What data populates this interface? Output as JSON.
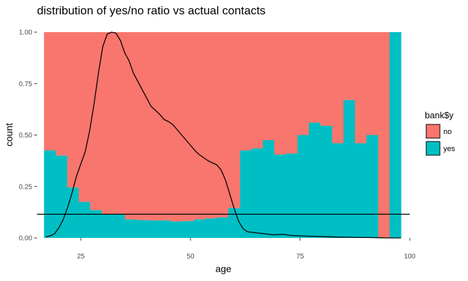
{
  "chart_data": {
    "type": "bar",
    "title": "distribution of yes/no ratio vs actual contacts",
    "xlabel": "age",
    "ylabel": "count",
    "xlim": [
      15,
      100
    ],
    "ylim": [
      0,
      1
    ],
    "x_ticks": [
      25,
      50,
      75,
      100
    ],
    "y_ticks": [
      0.0,
      0.25,
      0.5,
      0.75,
      1.0
    ],
    "y_tick_labels": [
      "0.00",
      "0.25",
      "0.50",
      "0.75",
      "1.00"
    ],
    "grid": false,
    "bins": [
      {
        "x0": 16.6,
        "x1": 19.3,
        "yes": 0.425
      },
      {
        "x0": 19.3,
        "x1": 21.9,
        "yes": 0.4
      },
      {
        "x0": 21.9,
        "x1": 24.5,
        "yes": 0.245
      },
      {
        "x0": 24.5,
        "x1": 27.1,
        "yes": 0.175
      },
      {
        "x0": 27.1,
        "x1": 29.8,
        "yes": 0.135
      },
      {
        "x0": 29.8,
        "x1": 32.4,
        "yes": 0.115
      },
      {
        "x0": 32.4,
        "x1": 35.0,
        "yes": 0.115
      },
      {
        "x0": 35.0,
        "x1": 37.6,
        "yes": 0.09
      },
      {
        "x0": 37.6,
        "x1": 40.3,
        "yes": 0.087
      },
      {
        "x0": 40.3,
        "x1": 42.9,
        "yes": 0.085
      },
      {
        "x0": 42.9,
        "x1": 45.5,
        "yes": 0.085
      },
      {
        "x0": 45.5,
        "x1": 48.1,
        "yes": 0.08
      },
      {
        "x0": 48.1,
        "x1": 50.8,
        "yes": 0.082
      },
      {
        "x0": 50.8,
        "x1": 53.4,
        "yes": 0.09
      },
      {
        "x0": 53.4,
        "x1": 56.0,
        "yes": 0.095
      },
      {
        "x0": 56.0,
        "x1": 58.6,
        "yes": 0.1
      },
      {
        "x0": 58.6,
        "x1": 61.3,
        "yes": 0.145
      },
      {
        "x0": 61.3,
        "x1": 63.9,
        "yes": 0.425
      },
      {
        "x0": 63.9,
        "x1": 66.5,
        "yes": 0.435
      },
      {
        "x0": 66.5,
        "x1": 69.1,
        "yes": 0.475
      },
      {
        "x0": 69.1,
        "x1": 71.8,
        "yes": 0.405
      },
      {
        "x0": 71.8,
        "x1": 74.4,
        "yes": 0.41
      },
      {
        "x0": 74.4,
        "x1": 77.0,
        "yes": 0.5
      },
      {
        "x0": 77.0,
        "x1": 79.6,
        "yes": 0.56
      },
      {
        "x0": 79.6,
        "x1": 82.3,
        "yes": 0.545
      },
      {
        "x0": 82.3,
        "x1": 84.9,
        "yes": 0.46
      },
      {
        "x0": 84.9,
        "x1": 87.5,
        "yes": 0.67
      },
      {
        "x0": 87.5,
        "x1": 90.1,
        "yes": 0.46
      },
      {
        "x0": 90.1,
        "x1": 92.8,
        "yes": 0.5
      },
      {
        "x0": 92.8,
        "x1": 95.4,
        "yes": 0.0
      },
      {
        "x0": 95.4,
        "x1": 98.0,
        "yes": 1.0
      }
    ],
    "density_curve": {
      "x": [
        17,
        18,
        19,
        20,
        21,
        22,
        23,
        24,
        25,
        26,
        27,
        28,
        29,
        30,
        31,
        32,
        33,
        34,
        35,
        36,
        37,
        38,
        39,
        40,
        41,
        42,
        43,
        44,
        45,
        46,
        47,
        48,
        49,
        50,
        51,
        52,
        53,
        54,
        55,
        56,
        57,
        58,
        59,
        60,
        61,
        62,
        63,
        65,
        67,
        69,
        71,
        73,
        75,
        78,
        81,
        84,
        87,
        90,
        93,
        95,
        98
      ],
      "y": [
        0.005,
        0.01,
        0.02,
        0.05,
        0.09,
        0.15,
        0.22,
        0.3,
        0.36,
        0.42,
        0.52,
        0.65,
        0.8,
        0.93,
        0.99,
        1.0,
        0.995,
        0.96,
        0.9,
        0.86,
        0.8,
        0.76,
        0.72,
        0.68,
        0.64,
        0.62,
        0.6,
        0.575,
        0.565,
        0.55,
        0.525,
        0.5,
        0.475,
        0.45,
        0.425,
        0.405,
        0.39,
        0.375,
        0.365,
        0.355,
        0.33,
        0.28,
        0.21,
        0.14,
        0.08,
        0.045,
        0.03,
        0.025,
        0.02,
        0.015,
        0.018,
        0.012,
        0.01,
        0.008,
        0.006,
        0.004,
        0.003,
        0.002,
        0.001,
        0.0,
        0.0
      ]
    },
    "hline": 0.115,
    "legend": {
      "title": "bank$y",
      "position": "right",
      "entries": [
        {
          "label": "no",
          "color": "#F8766D"
        },
        {
          "label": "yes",
          "color": "#00BFC4"
        }
      ]
    },
    "colors": {
      "no": "#F8766D",
      "yes": "#00BFC4",
      "line": "#000000",
      "axis_text": "#4d4d4d",
      "tick": "#333333"
    }
  }
}
